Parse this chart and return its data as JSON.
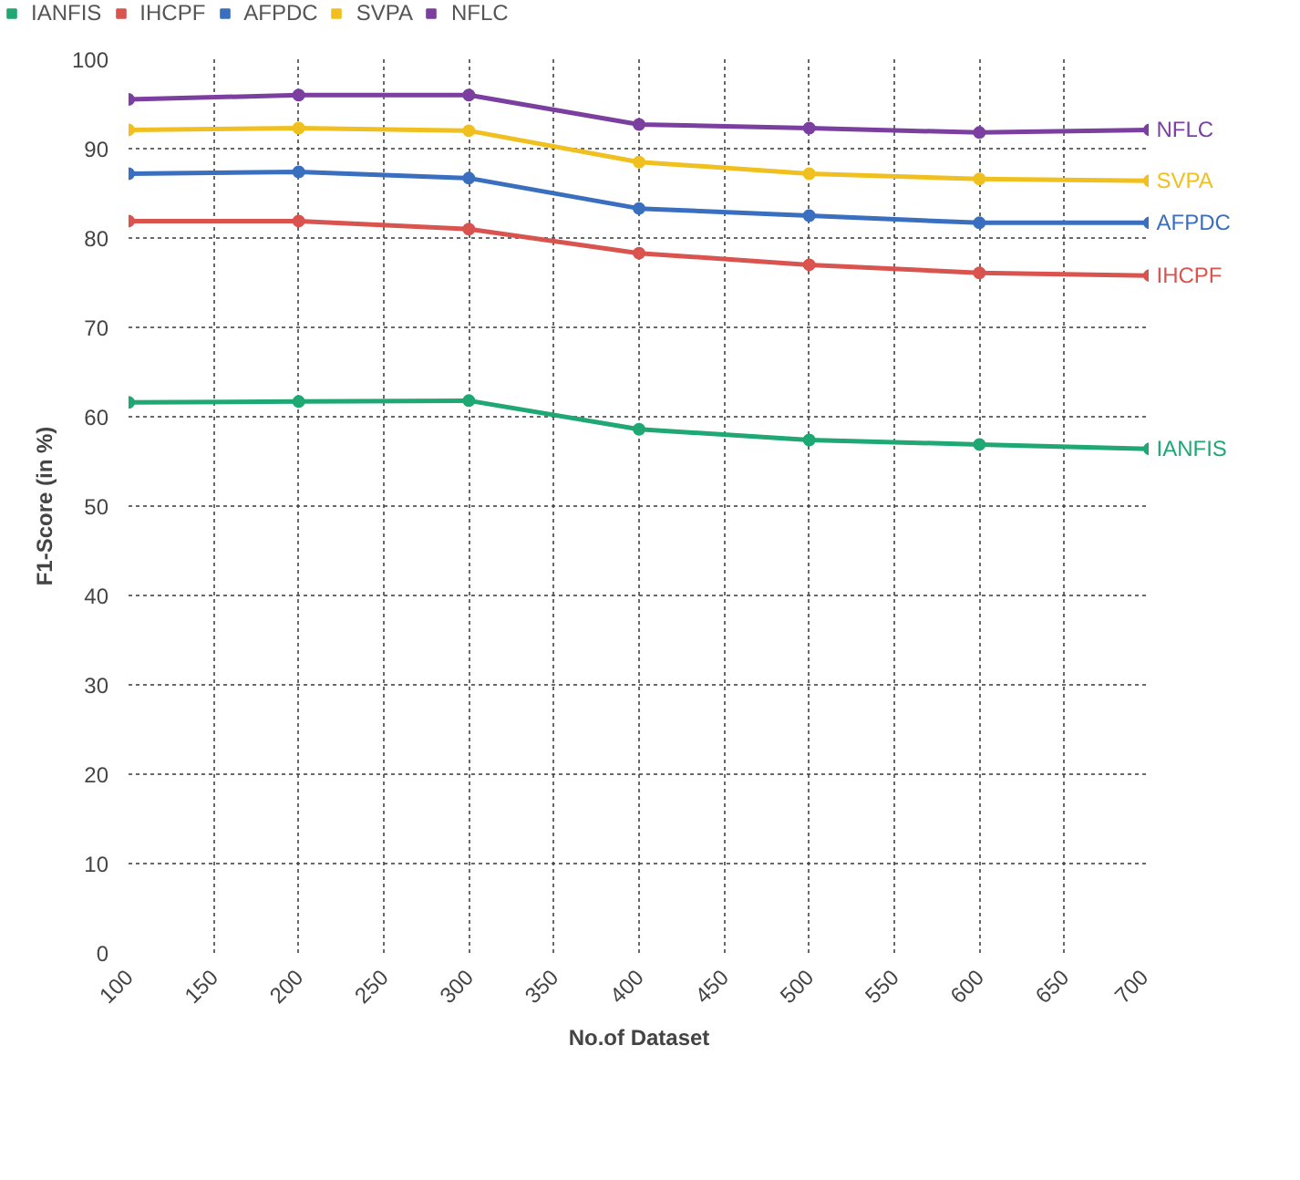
{
  "chart_data": {
    "type": "line",
    "xlabel": "No.of Dataset",
    "ylabel": "F1-Score (in %)",
    "x": [
      100,
      200,
      300,
      400,
      500,
      600,
      700
    ],
    "series": [
      {
        "name": "IANFIS",
        "color": "#1fa774",
        "values": [
          61.6,
          61.7,
          61.8,
          58.6,
          57.4,
          56.9,
          56.4
        ]
      },
      {
        "name": "IHCPF",
        "color": "#d9534f",
        "values": [
          81.9,
          81.9,
          81.0,
          78.3,
          77.0,
          76.1,
          75.8
        ]
      },
      {
        "name": "AFPDC",
        "color": "#3a6fbf",
        "values": [
          87.2,
          87.4,
          86.7,
          83.3,
          82.5,
          81.7,
          81.7
        ]
      },
      {
        "name": "SVPA",
        "color": "#f0c020",
        "values": [
          92.1,
          92.3,
          92.0,
          88.5,
          87.2,
          86.6,
          86.4
        ]
      },
      {
        "name": "NFLC",
        "color": "#7b3fa0",
        "values": [
          95.5,
          96.0,
          96.0,
          92.7,
          92.3,
          91.8,
          92.1
        ]
      }
    ],
    "xlim": [
      100,
      700
    ],
    "xticks": [
      100,
      150,
      200,
      250,
      300,
      350,
      400,
      450,
      500,
      550,
      600,
      650,
      700
    ],
    "ylim": [
      0,
      100
    ],
    "yticks": [
      0,
      10,
      20,
      30,
      40,
      50,
      60,
      70,
      80,
      90,
      100
    ],
    "grid": true,
    "legend": "top left",
    "marker": "circle",
    "line_style": "solid"
  }
}
